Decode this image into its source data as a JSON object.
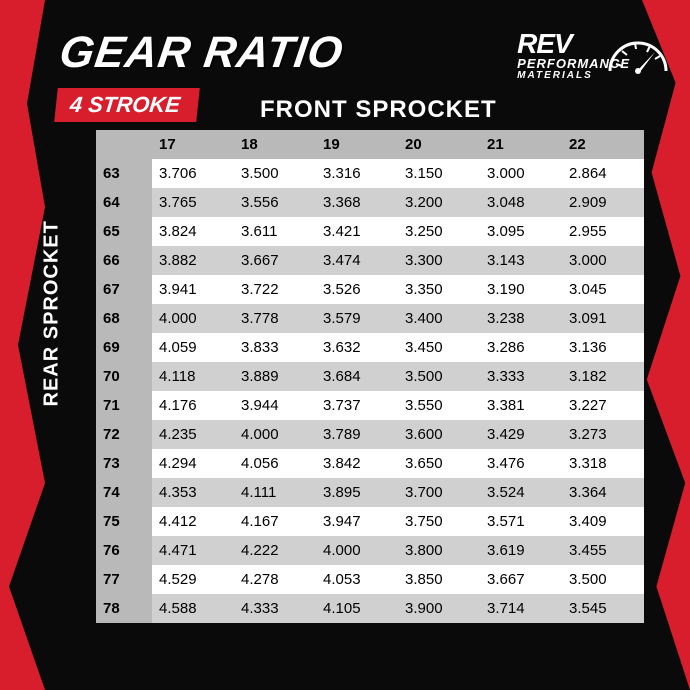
{
  "title": "GEAR RATIO",
  "badge": "4 STROKE",
  "front_label": "FRONT SPROCKET",
  "rear_label": "REAR SPROCKET",
  "logo": {
    "main": "REV",
    "sub1": "PERFORMANCE",
    "sub2": "MATERIALS"
  },
  "colors": {
    "accent": "#d81e2d",
    "bg": "#0a0a0a",
    "header_bg": "#b9b9b9",
    "row_odd": "#ffffff",
    "row_even": "#d0d0d0"
  },
  "table": {
    "type": "table",
    "front_sprocket": [
      "17",
      "18",
      "19",
      "20",
      "21",
      "22"
    ],
    "rear_sprocket": [
      "63",
      "64",
      "65",
      "66",
      "67",
      "68",
      "69",
      "70",
      "71",
      "72",
      "73",
      "74",
      "75",
      "76",
      "77",
      "78"
    ],
    "rows": [
      [
        "3.706",
        "3.500",
        "3.316",
        "3.150",
        "3.000",
        "2.864"
      ],
      [
        "3.765",
        "3.556",
        "3.368",
        "3.200",
        "3.048",
        "2.909"
      ],
      [
        "3.824",
        "3.611",
        "3.421",
        "3.250",
        "3.095",
        "2.955"
      ],
      [
        "3.882",
        "3.667",
        "3.474",
        "3.300",
        "3.143",
        "3.000"
      ],
      [
        "3.941",
        "3.722",
        "3.526",
        "3.350",
        "3.190",
        "3.045"
      ],
      [
        "4.000",
        "3.778",
        "3.579",
        "3.400",
        "3.238",
        "3.091"
      ],
      [
        "4.059",
        "3.833",
        "3.632",
        "3.450",
        "3.286",
        "3.136"
      ],
      [
        "4.118",
        "3.889",
        "3.684",
        "3.500",
        "3.333",
        "3.182"
      ],
      [
        "4.176",
        "3.944",
        "3.737",
        "3.550",
        "3.381",
        "3.227"
      ],
      [
        "4.235",
        "4.000",
        "3.789",
        "3.600",
        "3.429",
        "3.273"
      ],
      [
        "4.294",
        "4.056",
        "3.842",
        "3.650",
        "3.476",
        "3.318"
      ],
      [
        "4.353",
        "4.111",
        "3.895",
        "3.700",
        "3.524",
        "3.364"
      ],
      [
        "4.412",
        "4.167",
        "3.947",
        "3.750",
        "3.571",
        "3.409"
      ],
      [
        "4.471",
        "4.222",
        "4.000",
        "3.800",
        "3.619",
        "3.455"
      ],
      [
        "4.529",
        "4.278",
        "4.053",
        "3.850",
        "3.667",
        "3.500"
      ],
      [
        "4.588",
        "4.333",
        "4.105",
        "3.900",
        "3.714",
        "3.545"
      ]
    ]
  }
}
